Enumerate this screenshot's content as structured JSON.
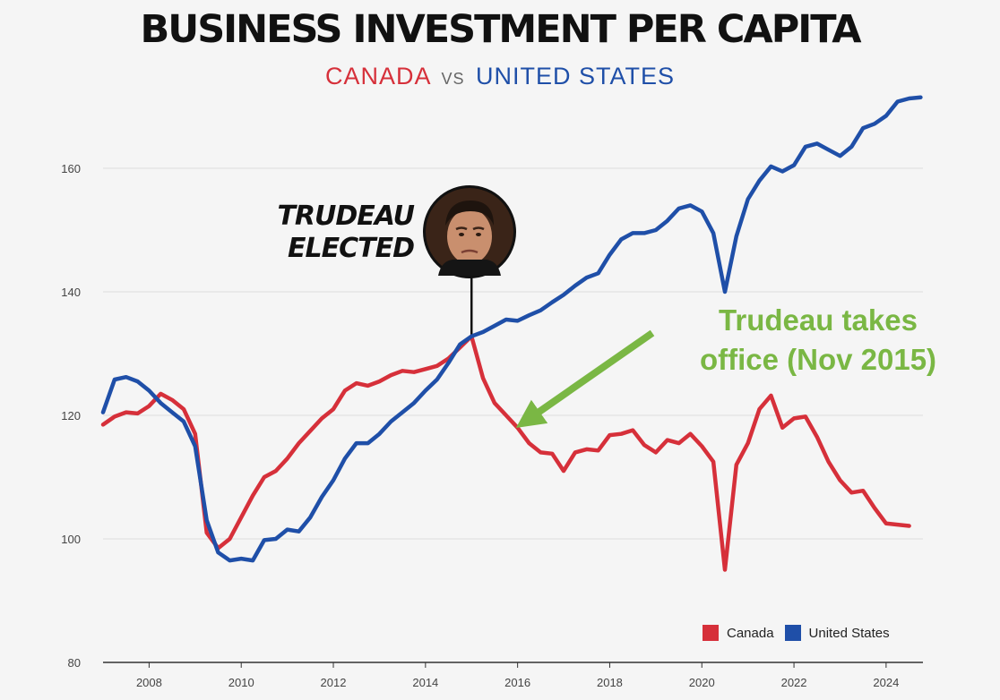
{
  "colors": {
    "canada": "#d6303a",
    "united_states": "#1f4fa8",
    "annotation": "#7ab744",
    "grid": "#dddddd"
  },
  "header": {
    "title": "BUSINESS INVESTMENT PER CAPITA",
    "subtitle_left": "CANADA",
    "subtitle_vs": "VS",
    "subtitle_right": "UNITED STATES"
  },
  "event": {
    "line1": "TRUDEAU",
    "line2": "ELECTED",
    "x": 2015
  },
  "annotation": {
    "line1": "Trudeau takes",
    "line2": "office (Nov 2015)",
    "target_x": 2016.0,
    "target_y": 118
  },
  "legend": {
    "canada": "Canada",
    "united_states": "United States"
  },
  "chart_data": {
    "type": "line",
    "title": "BUSINESS INVESTMENT PER CAPITA",
    "subtitle": "CANADA vs UNITED STATES",
    "xlabel": "",
    "ylabel": "",
    "xlim": [
      2007,
      2024.8
    ],
    "ylim": [
      80,
      170
    ],
    "x_ticks": [
      "2008",
      "2010",
      "2012",
      "2014",
      "2016",
      "2018",
      "2020",
      "2022",
      "2024"
    ],
    "y_ticks": [
      "80",
      "100",
      "120",
      "140",
      "160"
    ],
    "grid": true,
    "legend_position": "bottom-right",
    "series": [
      {
        "name": "Canada",
        "color": "#d6303a",
        "points": [
          [
            2007.0,
            118.5
          ],
          [
            2007.25,
            119.8
          ],
          [
            2007.5,
            120.5
          ],
          [
            2007.75,
            120.3
          ],
          [
            2008.0,
            121.5
          ],
          [
            2008.25,
            123.5
          ],
          [
            2008.5,
            122.5
          ],
          [
            2008.75,
            121.0
          ],
          [
            2009.0,
            117.0
          ],
          [
            2009.25,
            101.0
          ],
          [
            2009.5,
            98.5
          ],
          [
            2009.75,
            100.0
          ],
          [
            2010.0,
            103.5
          ],
          [
            2010.25,
            107.0
          ],
          [
            2010.5,
            110.0
          ],
          [
            2010.75,
            111.0
          ],
          [
            2011.0,
            113.0
          ],
          [
            2011.25,
            115.5
          ],
          [
            2011.5,
            117.5
          ],
          [
            2011.75,
            119.5
          ],
          [
            2012.0,
            121.0
          ],
          [
            2012.25,
            124.0
          ],
          [
            2012.5,
            125.2
          ],
          [
            2012.75,
            124.8
          ],
          [
            2013.0,
            125.5
          ],
          [
            2013.25,
            126.5
          ],
          [
            2013.5,
            127.2
          ],
          [
            2013.75,
            127.0
          ],
          [
            2014.0,
            127.5
          ],
          [
            2014.25,
            128.0
          ],
          [
            2014.5,
            129.2
          ],
          [
            2014.75,
            131.0
          ],
          [
            2015.0,
            132.8
          ],
          [
            2015.25,
            126.0
          ],
          [
            2015.5,
            122.0
          ],
          [
            2015.75,
            120.0
          ],
          [
            2016.0,
            118.0
          ],
          [
            2016.25,
            115.5
          ],
          [
            2016.5,
            114.0
          ],
          [
            2016.75,
            113.8
          ],
          [
            2017.0,
            111.0
          ],
          [
            2017.25,
            114.0
          ],
          [
            2017.5,
            114.5
          ],
          [
            2017.75,
            114.3
          ],
          [
            2018.0,
            116.8
          ],
          [
            2018.25,
            117.0
          ],
          [
            2018.5,
            117.6
          ],
          [
            2018.75,
            115.2
          ],
          [
            2019.0,
            114.0
          ],
          [
            2019.25,
            116.0
          ],
          [
            2019.5,
            115.5
          ],
          [
            2019.75,
            117.0
          ],
          [
            2020.0,
            115.0
          ],
          [
            2020.25,
            112.5
          ],
          [
            2020.5,
            95.0
          ],
          [
            2020.75,
            112.0
          ],
          [
            2021.0,
            115.5
          ],
          [
            2021.25,
            121.0
          ],
          [
            2021.5,
            123.2
          ],
          [
            2021.75,
            118.0
          ],
          [
            2022.0,
            119.5
          ],
          [
            2022.25,
            119.8
          ],
          [
            2022.5,
            116.5
          ],
          [
            2022.75,
            112.5
          ],
          [
            2023.0,
            109.5
          ],
          [
            2023.25,
            107.5
          ],
          [
            2023.5,
            107.8
          ],
          [
            2023.75,
            105.0
          ],
          [
            2024.0,
            102.5
          ],
          [
            2024.25,
            102.3
          ],
          [
            2024.5,
            102.1
          ]
        ]
      },
      {
        "name": "United States",
        "color": "#1f4fa8",
        "points": [
          [
            2007.0,
            120.5
          ],
          [
            2007.25,
            125.8
          ],
          [
            2007.5,
            126.2
          ],
          [
            2007.75,
            125.5
          ],
          [
            2008.0,
            124.0
          ],
          [
            2008.25,
            122.0
          ],
          [
            2008.5,
            120.5
          ],
          [
            2008.75,
            119.0
          ],
          [
            2009.0,
            115.0
          ],
          [
            2009.25,
            103.0
          ],
          [
            2009.5,
            97.8
          ],
          [
            2009.75,
            96.5
          ],
          [
            2010.0,
            96.8
          ],
          [
            2010.25,
            96.5
          ],
          [
            2010.5,
            99.8
          ],
          [
            2010.75,
            100.0
          ],
          [
            2011.0,
            101.5
          ],
          [
            2011.25,
            101.2
          ],
          [
            2011.5,
            103.5
          ],
          [
            2011.75,
            106.8
          ],
          [
            2012.0,
            109.5
          ],
          [
            2012.25,
            113.0
          ],
          [
            2012.5,
            115.5
          ],
          [
            2012.75,
            115.5
          ],
          [
            2013.0,
            117.0
          ],
          [
            2013.25,
            119.0
          ],
          [
            2013.5,
            120.5
          ],
          [
            2013.75,
            122.0
          ],
          [
            2014.0,
            124.0
          ],
          [
            2014.25,
            125.8
          ],
          [
            2014.5,
            128.5
          ],
          [
            2014.75,
            131.5
          ],
          [
            2015.0,
            132.8
          ],
          [
            2015.25,
            133.5
          ],
          [
            2015.5,
            134.5
          ],
          [
            2015.75,
            135.5
          ],
          [
            2016.0,
            135.3
          ],
          [
            2016.25,
            136.2
          ],
          [
            2016.5,
            137.0
          ],
          [
            2016.75,
            138.3
          ],
          [
            2017.0,
            139.5
          ],
          [
            2017.25,
            141.0
          ],
          [
            2017.5,
            142.3
          ],
          [
            2017.75,
            143.0
          ],
          [
            2018.0,
            146.0
          ],
          [
            2018.25,
            148.5
          ],
          [
            2018.5,
            149.5
          ],
          [
            2018.75,
            149.5
          ],
          [
            2019.0,
            150.0
          ],
          [
            2019.25,
            151.5
          ],
          [
            2019.5,
            153.5
          ],
          [
            2019.75,
            154.0
          ],
          [
            2020.0,
            153.0
          ],
          [
            2020.25,
            149.5
          ],
          [
            2020.5,
            140.0
          ],
          [
            2020.75,
            149.0
          ],
          [
            2021.0,
            155.0
          ],
          [
            2021.25,
            158.0
          ],
          [
            2021.5,
            160.3
          ],
          [
            2021.75,
            159.5
          ],
          [
            2022.0,
            160.5
          ],
          [
            2022.25,
            163.5
          ],
          [
            2022.5,
            164.0
          ],
          [
            2022.75,
            163.0
          ],
          [
            2023.0,
            162.0
          ],
          [
            2023.25,
            163.5
          ],
          [
            2023.5,
            166.5
          ],
          [
            2023.75,
            167.2
          ],
          [
            2024.0,
            168.5
          ],
          [
            2024.25,
            170.8
          ],
          [
            2024.5,
            171.3
          ],
          [
            2024.75,
            171.5
          ]
        ]
      }
    ]
  }
}
